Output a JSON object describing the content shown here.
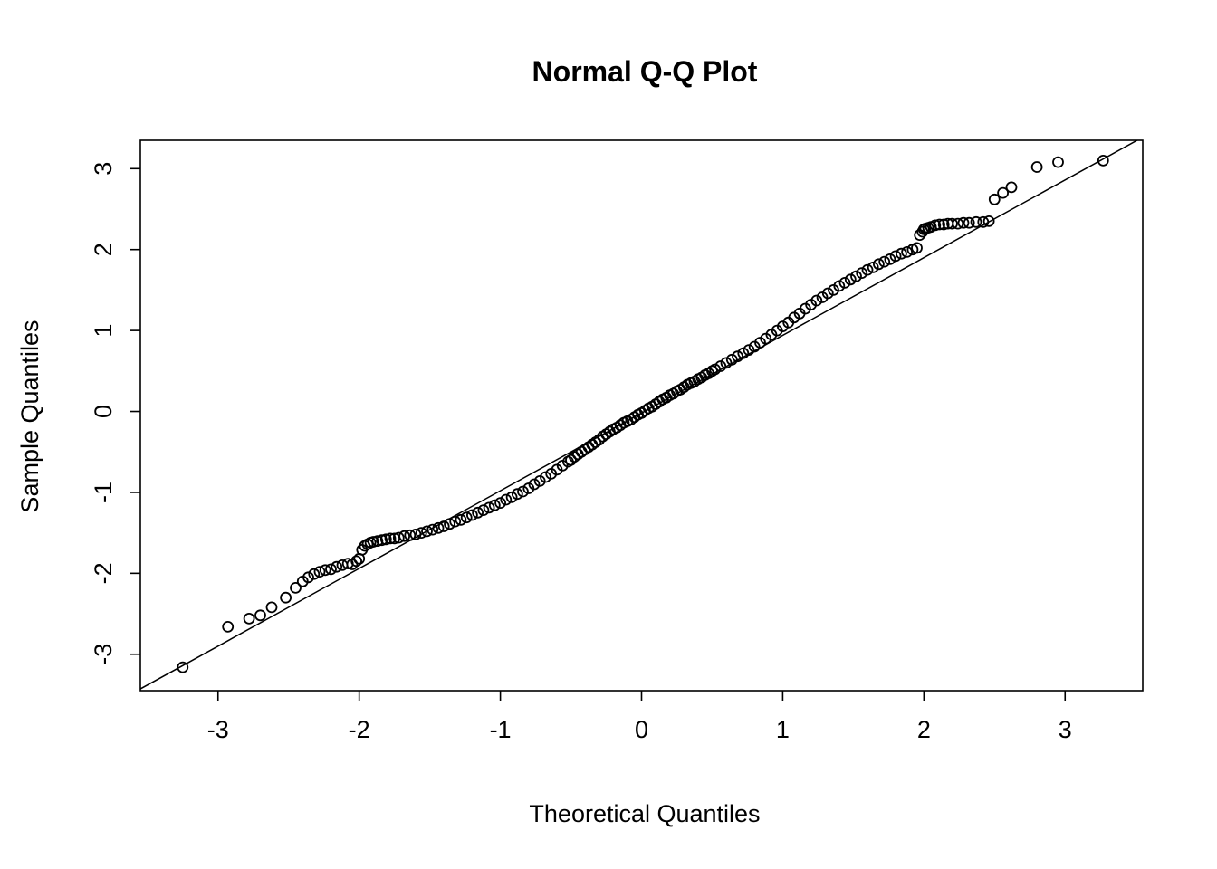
{
  "figure": {
    "title": "Normal Q-Q Plot",
    "xlabel": "Theoretical Quantiles",
    "ylabel": "Sample Quantiles"
  },
  "colors": {
    "background": "#ffffff",
    "foreground": "#000000"
  },
  "chart_data": {
    "type": "scatter",
    "title": "Normal Q-Q Plot",
    "xlabel": "Theoretical Quantiles",
    "ylabel": "Sample Quantiles",
    "xlim": [
      -3.55,
      3.55
    ],
    "ylim": [
      -3.45,
      3.35
    ],
    "x_ticks": [
      -3,
      -2,
      -1,
      0,
      1,
      2,
      3
    ],
    "y_ticks": [
      -3,
      -2,
      -1,
      0,
      1,
      2,
      3
    ],
    "grid": false,
    "legend": "none",
    "marker": {
      "shape": "open-circle",
      "color": "#000000",
      "radius": 5.5,
      "stroke_width": 1.8
    },
    "reference_line": {
      "slope": 0.96,
      "intercept": -0.02,
      "color": "#000000",
      "width": 1.5
    },
    "points": [
      [
        -3.25,
        -3.16
      ],
      [
        -2.93,
        -2.66
      ],
      [
        -2.78,
        -2.56
      ],
      [
        -2.7,
        -2.52
      ],
      [
        -2.62,
        -2.42
      ],
      [
        -2.52,
        -2.3
      ],
      [
        -2.45,
        -2.18
      ],
      [
        -2.4,
        -2.1
      ],
      [
        -2.36,
        -2.05
      ],
      [
        -2.32,
        -2.01
      ],
      [
        -2.28,
        -1.98
      ],
      [
        -2.24,
        -1.96
      ],
      [
        -2.2,
        -1.95
      ],
      [
        -2.16,
        -1.92
      ],
      [
        -2.12,
        -1.9
      ],
      [
        -2.08,
        -1.88
      ],
      [
        -2.05,
        -1.89
      ],
      [
        -2.02,
        -1.85
      ],
      [
        -2.0,
        -1.82
      ],
      [
        -1.98,
        -1.71
      ],
      [
        -1.96,
        -1.66
      ],
      [
        -1.94,
        -1.64
      ],
      [
        -1.92,
        -1.62
      ],
      [
        -1.9,
        -1.61
      ],
      [
        -1.87,
        -1.6
      ],
      [
        -1.84,
        -1.59
      ],
      [
        -1.81,
        -1.58
      ],
      [
        -1.78,
        -1.57
      ],
      [
        -1.75,
        -1.57
      ],
      [
        -1.72,
        -1.56
      ],
      [
        -1.68,
        -1.54
      ],
      [
        -1.64,
        -1.53
      ],
      [
        -1.6,
        -1.52
      ],
      [
        -1.56,
        -1.5
      ],
      [
        -1.52,
        -1.48
      ],
      [
        -1.48,
        -1.46
      ],
      [
        -1.44,
        -1.44
      ],
      [
        -1.4,
        -1.42
      ],
      [
        -1.36,
        -1.39
      ],
      [
        -1.32,
        -1.36
      ],
      [
        -1.28,
        -1.34
      ],
      [
        -1.24,
        -1.31
      ],
      [
        -1.2,
        -1.28
      ],
      [
        -1.16,
        -1.25
      ],
      [
        -1.12,
        -1.22
      ],
      [
        -1.08,
        -1.19
      ],
      [
        -1.04,
        -1.16
      ],
      [
        -1.0,
        -1.13
      ],
      [
        -0.96,
        -1.09
      ],
      [
        -0.92,
        -1.06
      ],
      [
        -0.88,
        -1.02
      ],
      [
        -0.84,
        -0.99
      ],
      [
        -0.8,
        -0.95
      ],
      [
        -0.76,
        -0.9
      ],
      [
        -0.72,
        -0.86
      ],
      [
        -0.68,
        -0.81
      ],
      [
        -0.64,
        -0.77
      ],
      [
        -0.6,
        -0.72
      ],
      [
        -0.56,
        -0.67
      ],
      [
        -0.52,
        -0.62
      ],
      [
        -0.5,
        -0.6
      ],
      [
        -0.475,
        -0.56
      ],
      [
        -0.45,
        -0.53
      ],
      [
        -0.425,
        -0.5
      ],
      [
        -0.4,
        -0.47
      ],
      [
        -0.375,
        -0.44
      ],
      [
        -0.35,
        -0.41
      ],
      [
        -0.325,
        -0.38
      ],
      [
        -0.3,
        -0.35
      ],
      [
        -0.275,
        -0.31
      ],
      [
        -0.25,
        -0.28
      ],
      [
        -0.225,
        -0.25
      ],
      [
        -0.2,
        -0.22
      ],
      [
        -0.175,
        -0.2
      ],
      [
        -0.15,
        -0.17
      ],
      [
        -0.125,
        -0.14
      ],
      [
        -0.1,
        -0.12
      ],
      [
        -0.075,
        -0.1
      ],
      [
        -0.05,
        -0.07
      ],
      [
        -0.025,
        -0.04
      ],
      [
        0.0,
        -0.02
      ],
      [
        0.025,
        0.01
      ],
      [
        0.05,
        0.04
      ],
      [
        0.075,
        0.06
      ],
      [
        0.1,
        0.09
      ],
      [
        0.125,
        0.12
      ],
      [
        0.15,
        0.15
      ],
      [
        0.175,
        0.17
      ],
      [
        0.2,
        0.2
      ],
      [
        0.225,
        0.22
      ],
      [
        0.25,
        0.25
      ],
      [
        0.275,
        0.27
      ],
      [
        0.3,
        0.3
      ],
      [
        0.325,
        0.33
      ],
      [
        0.35,
        0.35
      ],
      [
        0.375,
        0.37
      ],
      [
        0.4,
        0.4
      ],
      [
        0.425,
        0.42
      ],
      [
        0.45,
        0.45
      ],
      [
        0.475,
        0.47
      ],
      [
        0.5,
        0.5
      ],
      [
        0.52,
        0.52
      ],
      [
        0.56,
        0.56
      ],
      [
        0.6,
        0.6
      ],
      [
        0.64,
        0.64
      ],
      [
        0.68,
        0.68
      ],
      [
        0.72,
        0.72
      ],
      [
        0.76,
        0.76
      ],
      [
        0.8,
        0.8
      ],
      [
        0.84,
        0.85
      ],
      [
        0.88,
        0.9
      ],
      [
        0.92,
        0.95
      ],
      [
        0.96,
        1.0
      ],
      [
        1.0,
        1.05
      ],
      [
        1.04,
        1.1
      ],
      [
        1.08,
        1.16
      ],
      [
        1.12,
        1.21
      ],
      [
        1.16,
        1.27
      ],
      [
        1.2,
        1.32
      ],
      [
        1.24,
        1.37
      ],
      [
        1.28,
        1.41
      ],
      [
        1.32,
        1.46
      ],
      [
        1.36,
        1.5
      ],
      [
        1.4,
        1.55
      ],
      [
        1.44,
        1.59
      ],
      [
        1.48,
        1.63
      ],
      [
        1.52,
        1.67
      ],
      [
        1.56,
        1.71
      ],
      [
        1.6,
        1.75
      ],
      [
        1.64,
        1.78
      ],
      [
        1.68,
        1.82
      ],
      [
        1.72,
        1.85
      ],
      [
        1.76,
        1.88
      ],
      [
        1.8,
        1.92
      ],
      [
        1.84,
        1.95
      ],
      [
        1.88,
        1.97
      ],
      [
        1.92,
        2.0
      ],
      [
        1.95,
        2.02
      ],
      [
        1.97,
        2.18
      ],
      [
        1.99,
        2.22
      ],
      [
        2.0,
        2.25
      ],
      [
        2.01,
        2.26
      ],
      [
        2.03,
        2.27
      ],
      [
        2.05,
        2.28
      ],
      [
        2.08,
        2.3
      ],
      [
        2.11,
        2.31
      ],
      [
        2.14,
        2.31
      ],
      [
        2.17,
        2.32
      ],
      [
        2.2,
        2.32
      ],
      [
        2.24,
        2.32
      ],
      [
        2.28,
        2.33
      ],
      [
        2.32,
        2.33
      ],
      [
        2.37,
        2.34
      ],
      [
        2.42,
        2.34
      ],
      [
        2.46,
        2.35
      ],
      [
        2.5,
        2.62
      ],
      [
        2.56,
        2.7
      ],
      [
        2.62,
        2.77
      ],
      [
        2.8,
        3.02
      ],
      [
        2.95,
        3.08
      ],
      [
        3.27,
        3.1
      ]
    ]
  }
}
